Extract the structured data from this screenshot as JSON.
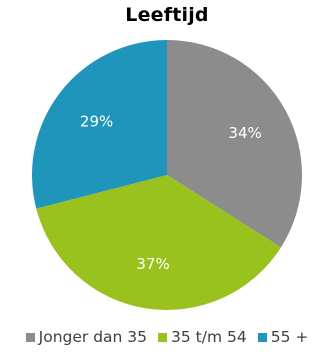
{
  "chart_data": {
    "type": "pie",
    "title": "Leeftijd",
    "slices": [
      {
        "label": "Jonger dan 35",
        "value": 34,
        "display": "34%",
        "color": "#8c8c8c"
      },
      {
        "label": "35 t/m 54",
        "value": 37,
        "display": "37%",
        "color": "#99c21f"
      },
      {
        "label": "55 +",
        "value": 29,
        "display": "29%",
        "color": "#1f95bb"
      }
    ],
    "legend_position": "bottom",
    "label_color": "#ffffff",
    "start_angle": "12 o'clock",
    "direction": "clockwise"
  }
}
